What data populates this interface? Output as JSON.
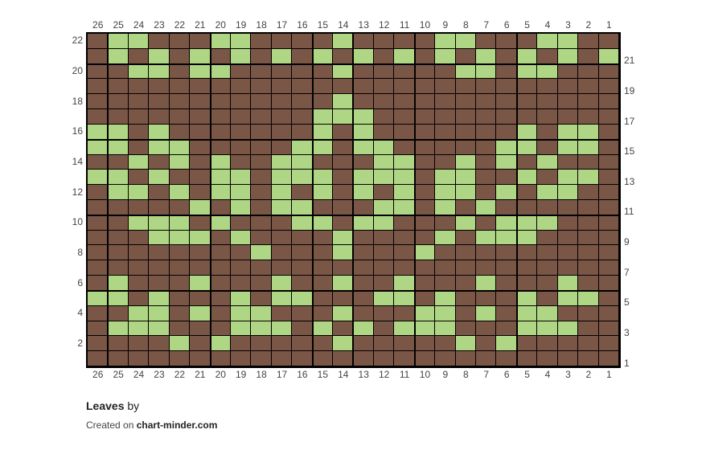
{
  "chart_data": {
    "type": "heatmap",
    "columns": 26,
    "rows_count": 22,
    "column_order": "26 to 1 (left to right)",
    "row_order": "22 to 1 (top to bottom)",
    "colors": {
      "0": "#7a5646",
      "1": "#afd684"
    },
    "rows": [
      "01100011000010000110001100",
      "01010101010101010101010101",
      "00110110000010000011011000",
      "00000000000000000000000000",
      "00000000000010000000000000",
      "00000000000111000000000000",
      "11010000000101000000010110",
      "11011000001101100000110110",
      "00101010011000110010101000",
      "11010011011101110110010110",
      "01101011010101010110101100",
      "00000101011000110101000000",
      "00111010001101100010111000",
      "00011101000010000101110000",
      "00000000100010001000000000",
      "00000000000000000000000000",
      "01000100010010010001000100",
      "11010001011000110100010110",
      "00110101100010001101011000",
      "01110001110101011100011100",
      "00001010000010000010100000",
      "00000000000000000000000000"
    ]
  },
  "title": {
    "name": "Leaves",
    "by": "by"
  },
  "credit": {
    "prefix": "Created on",
    "site": "chart-minder.com"
  }
}
